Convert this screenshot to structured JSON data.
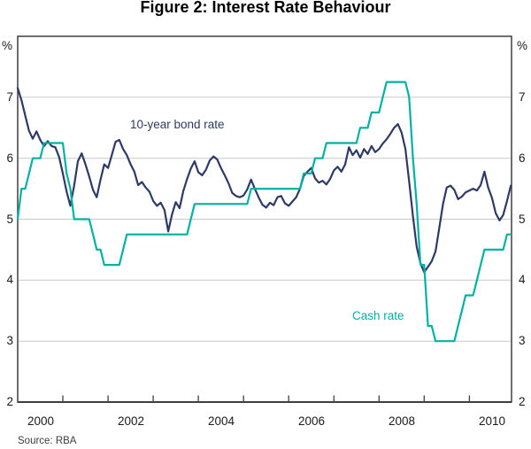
{
  "title": "Figure 2: Interest Rate Behaviour",
  "source": "Source: RBA",
  "colors": {
    "bond": "#2e3a66",
    "cash": "#00b1a4",
    "grid": "#c9c9c9",
    "frame": "#3f3f3f",
    "text": "#1a1a1a"
  },
  "axes": {
    "unit_left": "%",
    "unit_right": "%",
    "y_ticks": [
      7,
      6,
      5,
      4,
      3,
      2
    ],
    "gridlines": [
      3,
      4,
      5,
      6,
      7
    ],
    "x_tick_years": [
      2001,
      2002,
      2003,
      2004,
      2005,
      2006,
      2007,
      2008,
      2009,
      2010
    ],
    "x_labels": [
      "2000",
      "2002",
      "2004",
      "2006",
      "2008",
      "2010"
    ]
  },
  "series_labels": {
    "bond": "10-year bond rate",
    "cash": "Cash rate"
  },
  "chart_data": {
    "type": "line",
    "title": "Figure 2: Interest Rate Behaviour",
    "x_start": 2000,
    "frequency": "monthly",
    "xlim": [
      2000,
      2010.9333
    ],
    "ylim": [
      2,
      8
    ],
    "grid": "horizontal",
    "xlabel": "",
    "ylabel": "%",
    "legend_position": "in-plot-annotations",
    "series": [
      {
        "name": "10-year bond rate",
        "color": "#2e3a66",
        "values": [
          7.15,
          6.95,
          6.7,
          6.45,
          6.32,
          6.44,
          6.3,
          6.2,
          6.28,
          6.2,
          6.18,
          6.02,
          5.75,
          5.45,
          5.22,
          5.55,
          5.95,
          6.08,
          5.9,
          5.7,
          5.48,
          5.36,
          5.65,
          5.9,
          5.84,
          6.05,
          6.27,
          6.3,
          6.15,
          6.05,
          5.9,
          5.78,
          5.56,
          5.61,
          5.52,
          5.45,
          5.3,
          5.22,
          5.27,
          5.15,
          4.8,
          5.08,
          5.28,
          5.18,
          5.46,
          5.66,
          5.83,
          5.95,
          5.77,
          5.72,
          5.81,
          5.96,
          6.03,
          5.98,
          5.84,
          5.72,
          5.59,
          5.43,
          5.38,
          5.36,
          5.39,
          5.49,
          5.65,
          5.5,
          5.36,
          5.24,
          5.19,
          5.27,
          5.23,
          5.36,
          5.38,
          5.26,
          5.22,
          5.29,
          5.36,
          5.5,
          5.71,
          5.78,
          5.84,
          5.67,
          5.6,
          5.63,
          5.57,
          5.66,
          5.8,
          5.86,
          5.78,
          5.9,
          6.18,
          6.05,
          6.13,
          6.01,
          6.15,
          6.07,
          6.2,
          6.1,
          6.15,
          6.24,
          6.31,
          6.4,
          6.5,
          6.56,
          6.42,
          6.15,
          5.62,
          5.05,
          4.55,
          4.28,
          4.13,
          4.22,
          4.31,
          4.47,
          4.85,
          5.25,
          5.52,
          5.55,
          5.48,
          5.33,
          5.37,
          5.44,
          5.47,
          5.5,
          5.47,
          5.56,
          5.78,
          5.52,
          5.35,
          5.1,
          4.98,
          5.07,
          5.3,
          5.55
        ]
      },
      {
        "name": "Cash rate",
        "color": "#00b1a4",
        "values": [
          5.0,
          5.5,
          5.5,
          5.75,
          6.0,
          6.0,
          6.0,
          6.25,
          6.25,
          6.25,
          6.25,
          6.25,
          6.25,
          5.75,
          5.5,
          5.0,
          5.0,
          5.0,
          5.0,
          5.0,
          4.75,
          4.5,
          4.5,
          4.25,
          4.25,
          4.25,
          4.25,
          4.25,
          4.5,
          4.75,
          4.75,
          4.75,
          4.75,
          4.75,
          4.75,
          4.75,
          4.75,
          4.75,
          4.75,
          4.75,
          4.75,
          4.75,
          4.75,
          4.75,
          4.75,
          4.75,
          5.0,
          5.25,
          5.25,
          5.25,
          5.25,
          5.25,
          5.25,
          5.25,
          5.25,
          5.25,
          5.25,
          5.25,
          5.25,
          5.25,
          5.25,
          5.25,
          5.5,
          5.5,
          5.5,
          5.5,
          5.5,
          5.5,
          5.5,
          5.5,
          5.5,
          5.5,
          5.5,
          5.5,
          5.5,
          5.5,
          5.75,
          5.75,
          5.75,
          6.0,
          6.0,
          6.0,
          6.25,
          6.25,
          6.25,
          6.25,
          6.25,
          6.25,
          6.25,
          6.25,
          6.25,
          6.5,
          6.5,
          6.5,
          6.75,
          6.75,
          6.75,
          7.0,
          7.25,
          7.25,
          7.25,
          7.25,
          7.25,
          7.25,
          7.0,
          6.0,
          5.25,
          4.25,
          4.25,
          3.25,
          3.25,
          3.0,
          3.0,
          3.0,
          3.0,
          3.0,
          3.0,
          3.25,
          3.5,
          3.75,
          3.75,
          3.75,
          4.0,
          4.25,
          4.5,
          4.5,
          4.5,
          4.5,
          4.5,
          4.5,
          4.75,
          4.75
        ]
      }
    ]
  }
}
